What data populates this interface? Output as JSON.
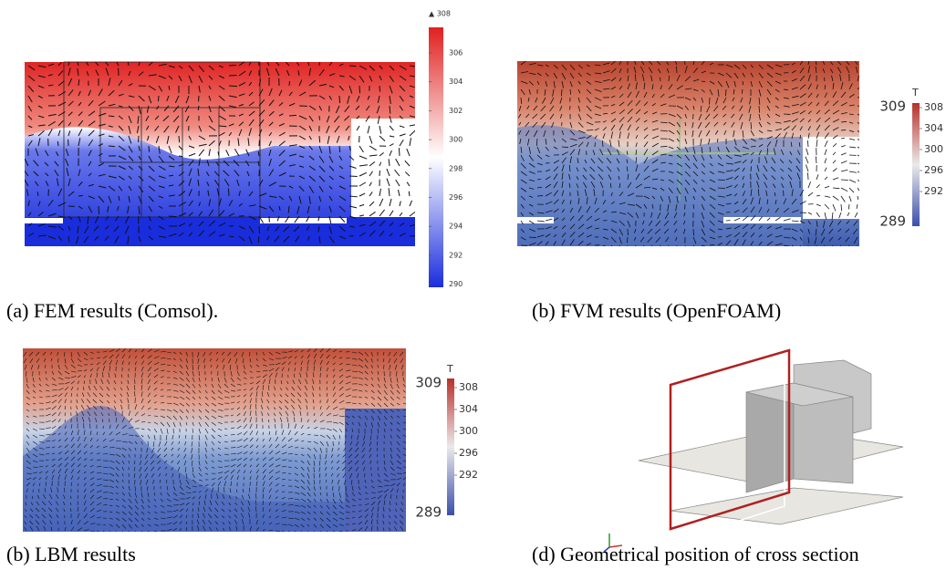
{
  "panels": [
    {
      "caption": "(a)  FEM results (Comsol).",
      "colorbar": {
        "max_label": "▲ 308",
        "ticks": [
          "306",
          "304",
          "302",
          "300",
          "298",
          "296",
          "294",
          "292",
          "290"
        ]
      }
    },
    {
      "caption": "(b) FVM results (OpenFOAM)",
      "colorbar": {
        "title": "T",
        "max_label": "309",
        "min_label": "289",
        "ticks": [
          "308",
          "304",
          "300",
          "296",
          "292"
        ]
      }
    },
    {
      "caption": "(b)  LBM results",
      "colorbar": {
        "title": "T",
        "max_label": "309",
        "min_label": "289",
        "ticks": [
          "308",
          "304",
          "300",
          "296",
          "292"
        ]
      }
    },
    {
      "caption": "(d) Geometrical position of cross section"
    }
  ]
}
